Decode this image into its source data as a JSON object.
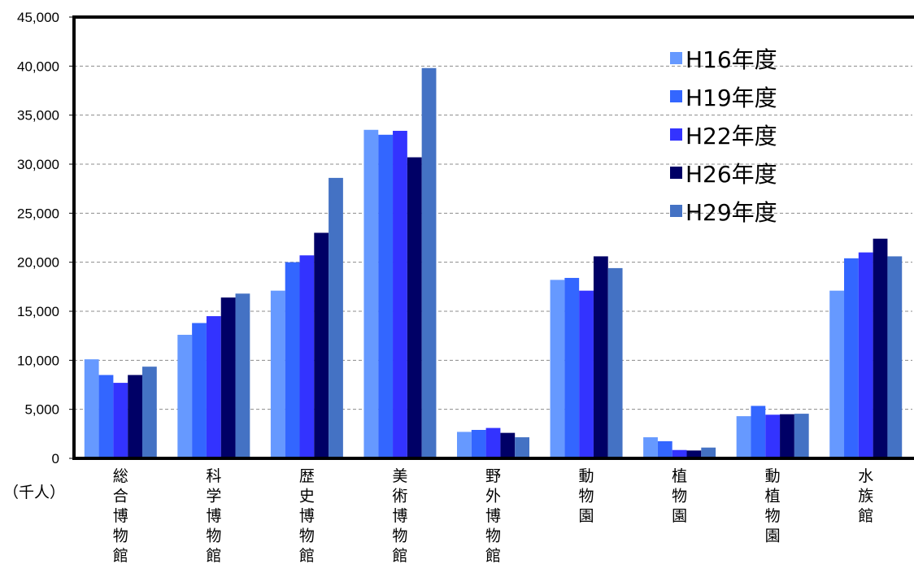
{
  "chart_data": {
    "type": "bar",
    "unit_label": "（千人）",
    "categories": [
      "総合博物館",
      "科学博物館",
      "歴史博物館",
      "美術博物館",
      "野外博物館",
      "動物園",
      "植物園",
      "動植物園",
      "水族館"
    ],
    "ylim": [
      0,
      45000
    ],
    "yticks": [
      "0",
      "5,000",
      "10,000",
      "15,000",
      "20,000",
      "25,000",
      "30,000",
      "35,000",
      "40,000",
      "45,000"
    ],
    "ytick_values": [
      0,
      5000,
      10000,
      15000,
      20000,
      25000,
      30000,
      35000,
      40000,
      45000
    ],
    "grid": "horizontal dashed",
    "legend_position": "top-right",
    "series": [
      {
        "name": "H16年度",
        "color": "#6699ff",
        "values": [
          10100,
          12600,
          17100,
          33500,
          2700,
          18200,
          2150,
          4300,
          17100
        ]
      },
      {
        "name": "H19年度",
        "color": "#3366ff",
        "values": [
          8500,
          13800,
          20000,
          33000,
          2900,
          18400,
          1750,
          5350,
          20400
        ]
      },
      {
        "name": "H22年度",
        "color": "#3333ff",
        "values": [
          7700,
          14500,
          20700,
          33400,
          3100,
          17100,
          850,
          4450,
          21000
        ]
      },
      {
        "name": "H26年度",
        "color": "#000066",
        "values": [
          8500,
          16400,
          23000,
          30700,
          2600,
          20600,
          800,
          4500,
          22400
        ]
      },
      {
        "name": "H29年度",
        "color": "#4472c4",
        "values": [
          9350,
          16800,
          28600,
          39800,
          2150,
          19400,
          1100,
          4550,
          20600
        ]
      }
    ]
  }
}
